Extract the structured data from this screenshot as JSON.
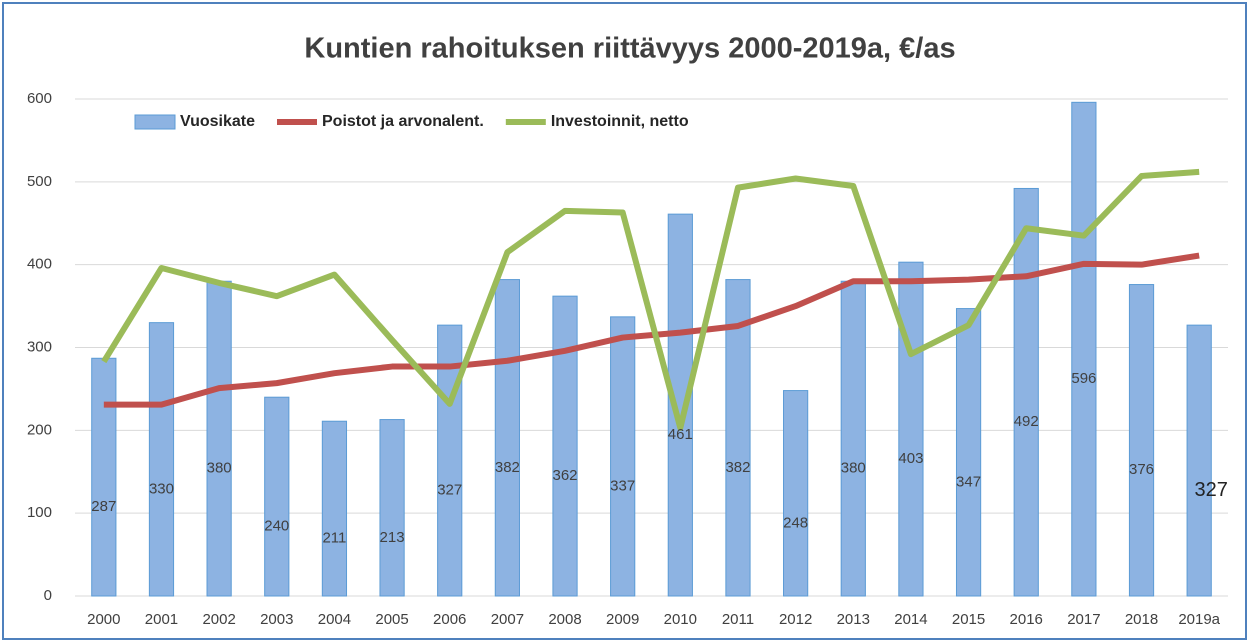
{
  "chart_data": {
    "type": "bar-line",
    "title": "Kuntien rahoituksen riittävyys 2000-2019a, €/as",
    "categories": [
      "2000",
      "2001",
      "2002",
      "2003",
      "2004",
      "2005",
      "2006",
      "2007",
      "2008",
      "2009",
      "2010",
      "2011",
      "2012",
      "2013",
      "2014",
      "2015",
      "2016",
      "2017",
      "2018",
      "2019a"
    ],
    "series": [
      {
        "name": "Vuosikate",
        "type": "bar",
        "color": "#8db3e2",
        "values": [
          287,
          330,
          380,
          240,
          211,
          213,
          327,
          382,
          362,
          337,
          461,
          382,
          248,
          380,
          403,
          347,
          492,
          596,
          376,
          327
        ]
      },
      {
        "name": "Poistot ja arvonalent.",
        "type": "line",
        "color": "#c0504d",
        "values": [
          231,
          231,
          251,
          257,
          269,
          277,
          277,
          284,
          296,
          312,
          318,
          326,
          350,
          380,
          380,
          382,
          386,
          401,
          400,
          411
        ]
      },
      {
        "name": "Investoinnit, netto",
        "type": "line",
        "color": "#9bbb59",
        "values": [
          283,
          396,
          378,
          362,
          388,
          309,
          232,
          415,
          465,
          463,
          203,
          493,
          504,
          495,
          292,
          327,
          444,
          435,
          507,
          512
        ]
      }
    ],
    "ylim": [
      0,
      600
    ],
    "yticks": [
      0,
      100,
      200,
      300,
      400,
      500,
      600
    ],
    "grid": true,
    "legend": "top-left"
  }
}
